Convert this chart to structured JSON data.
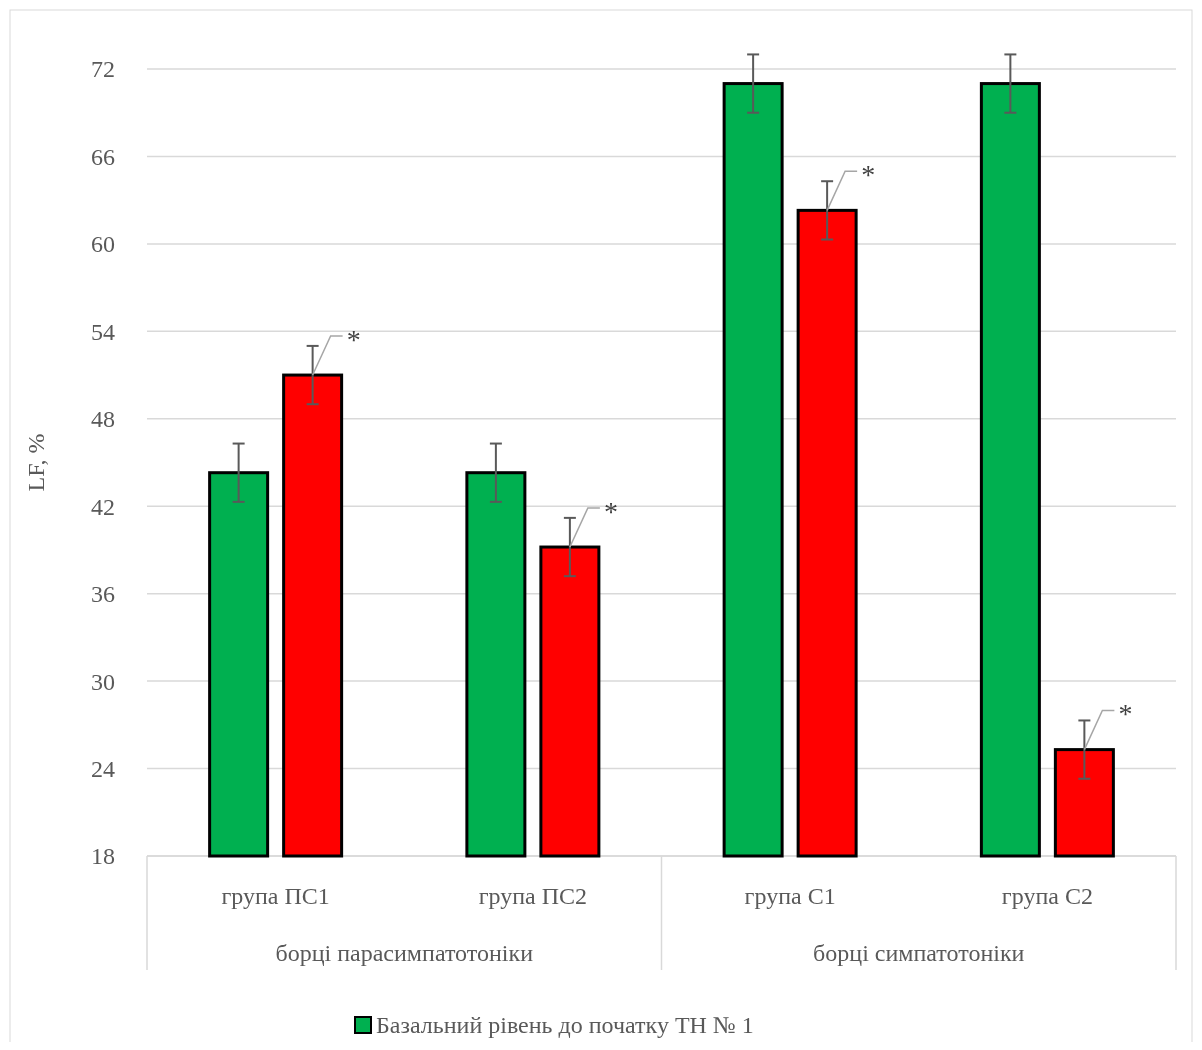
{
  "chart_data": {
    "type": "bar",
    "ylabel": "LF, %",
    "categories": [
      "група ПС1",
      "група ПС2",
      "група С1",
      "група С2"
    ],
    "series": [
      {
        "name": "Базальний рівень до початку ТН № 1",
        "color": "#00b050",
        "values": [
          44.3,
          44.3,
          71,
          71
        ],
        "errors": [
          2,
          2,
          2,
          2
        ]
      },
      {
        "color": "#ff0000",
        "values": [
          51,
          39.2,
          62.3,
          25.3
        ],
        "errors": [
          2,
          2,
          2,
          2
        ]
      }
    ],
    "ylim": [
      18,
      72
    ],
    "yticks": [
      18,
      24,
      30,
      36,
      42,
      48,
      54,
      60,
      66,
      72
    ],
    "grid": "y",
    "legend": "bottom",
    "annotations": [
      "борці парасимпатотоніки",
      "борці симпатотоніки",
      "*",
      "*",
      "*",
      "*"
    ]
  }
}
